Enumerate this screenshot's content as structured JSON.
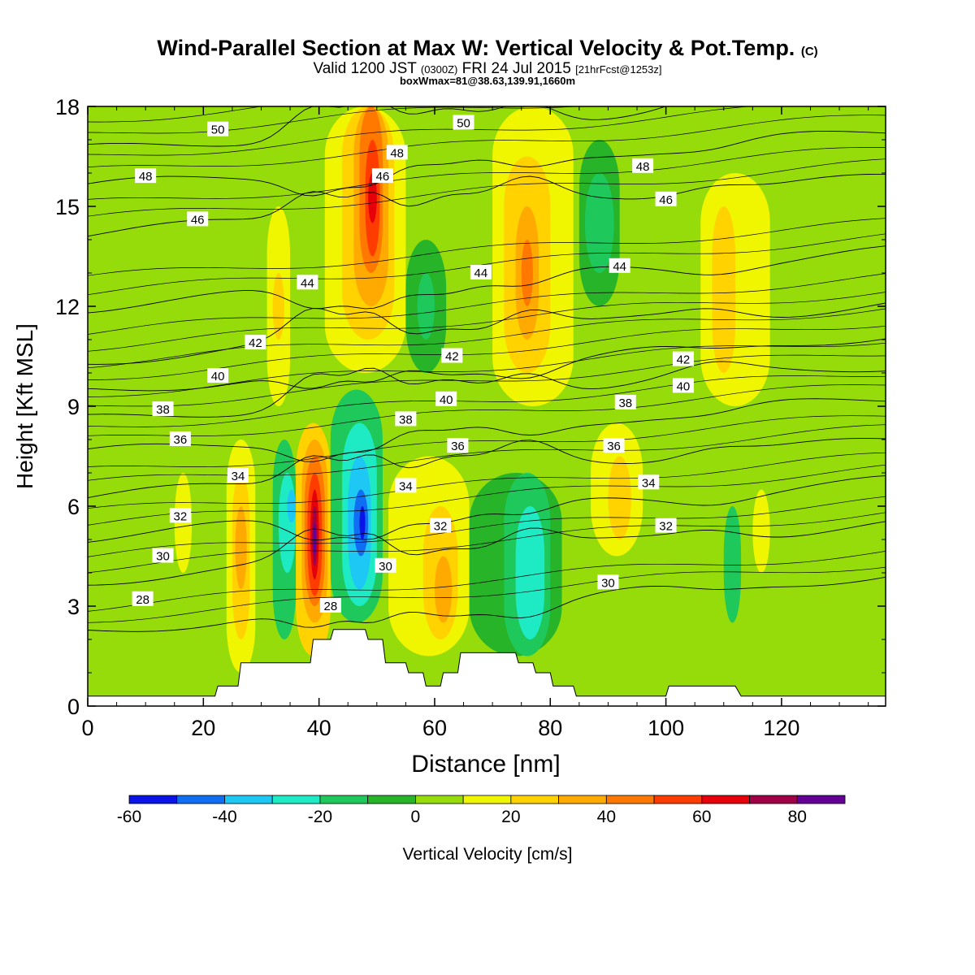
{
  "title": {
    "main": "Wind-Parallel Section at Max W: Vertical Velocity & Pot.Temp.",
    "copyright": "(C)",
    "valid_prefix": "Valid 1200 JST",
    "valid_utc": "(0300Z)",
    "valid_date": "FRI 24 Jul 2015",
    "forecast": "[21hrFcst@1253z]",
    "box_info": "boxWmax=81@38.63,139.91,1660m"
  },
  "chart_data": {
    "type": "heatmap",
    "xlabel": "Distance [nm]",
    "ylabel": "Height [Kft MSL]",
    "xlim": [
      0,
      138
    ],
    "ylim": [
      0,
      18
    ],
    "x_ticks": [
      0,
      20,
      40,
      60,
      80,
      100,
      120
    ],
    "y_ticks": [
      0,
      3,
      6,
      9,
      12,
      15,
      18
    ],
    "colorbar": {
      "label": "Vertical Velocity [cm/s]",
      "min": -60,
      "max": 90,
      "tick_values": [
        -60,
        -40,
        -20,
        0,
        20,
        40,
        60,
        80
      ],
      "colors": [
        "#0a14e6",
        "#0f6ef2",
        "#1ec8f5",
        "#1eebc3",
        "#1ec85a",
        "#28b428",
        "#96dc0a",
        "#f0f500",
        "#ffd200",
        "#ffaa00",
        "#ff7800",
        "#ff3c00",
        "#e6000a",
        "#a00046",
        "#640096"
      ]
    },
    "cells": [
      {
        "x": [
          0,
          138
        ],
        "y": [
          0,
          18
        ],
        "w": 5
      },
      {
        "x": [
          0,
          20
        ],
        "y": [
          7,
          18
        ],
        "w": 5
      },
      {
        "x": [
          0,
          8
        ],
        "y": [
          0,
          4
        ],
        "w": 5
      },
      {
        "x": [
          15,
          20
        ],
        "y": [
          2,
          7
        ],
        "w": 5
      },
      {
        "x": [
          15,
          18
        ],
        "y": [
          4,
          7
        ],
        "w": 15
      },
      {
        "x": [
          22,
          30
        ],
        "y": [
          0.5,
          18
        ],
        "w": 0
      },
      {
        "x": [
          24,
          29
        ],
        "y": [
          1,
          8
        ],
        "w": 15
      },
      {
        "x": [
          25,
          28
        ],
        "y": [
          2,
          7
        ],
        "w": 25
      },
      {
        "x": [
          25.5,
          27.5
        ],
        "y": [
          3.5,
          6
        ],
        "w": 35
      },
      {
        "x": [
          29,
          33
        ],
        "y": [
          0.5,
          17
        ],
        "w": 0
      },
      {
        "x": [
          31,
          35
        ],
        "y": [
          9,
          15
        ],
        "w": 15
      },
      {
        "x": [
          32,
          34
        ],
        "y": [
          11,
          13
        ],
        "w": 25
      },
      {
        "x": [
          32,
          36
        ],
        "y": [
          2,
          8
        ],
        "w": -15
      },
      {
        "x": [
          33,
          36
        ],
        "y": [
          4,
          7
        ],
        "w": -25
      },
      {
        "x": [
          34.5,
          36
        ],
        "y": [
          5.5,
          6.5
        ],
        "w": -35
      },
      {
        "x": [
          36,
          42
        ],
        "y": [
          1.5,
          8.5
        ],
        "w": 25
      },
      {
        "x": [
          37,
          41.5
        ],
        "y": [
          2.5,
          8
        ],
        "w": 35
      },
      {
        "x": [
          37.5,
          41
        ],
        "y": [
          3,
          7.5
        ],
        "w": 45
      },
      {
        "x": [
          38,
          40.5
        ],
        "y": [
          3.3,
          7
        ],
        "w": 55
      },
      {
        "x": [
          38.5,
          40
        ],
        "y": [
          3.8,
          6.5
        ],
        "w": 65
      },
      {
        "x": [
          38.8,
          39.7
        ],
        "y": [
          4.2,
          6
        ],
        "w": 75
      },
      {
        "x": [
          39,
          39.5
        ],
        "y": [
          4.5,
          5.5
        ],
        "w": 85
      },
      {
        "x": [
          42,
          51
        ],
        "y": [
          2.5,
          9.5
        ],
        "w": -15
      },
      {
        "x": [
          44,
          50
        ],
        "y": [
          3,
          8.5
        ],
        "w": -25
      },
      {
        "x": [
          45,
          49
        ],
        "y": [
          3.5,
          7.5
        ],
        "w": -35
      },
      {
        "x": [
          46,
          48.5
        ],
        "y": [
          4.5,
          6.5
        ],
        "w": -45
      },
      {
        "x": [
          47,
          48
        ],
        "y": [
          5,
          6
        ],
        "w": -55
      },
      {
        "x": [
          41,
          55
        ],
        "y": [
          10,
          18
        ],
        "w": 15
      },
      {
        "x": [
          44,
          53
        ],
        "y": [
          11,
          18
        ],
        "w": 25
      },
      {
        "x": [
          46,
          52
        ],
        "y": [
          12,
          18
        ],
        "w": 35
      },
      {
        "x": [
          47,
          51
        ],
        "y": [
          13,
          18
        ],
        "w": 45
      },
      {
        "x": [
          48,
          50.5
        ],
        "y": [
          13.5,
          17
        ],
        "w": 55
      },
      {
        "x": [
          48.5,
          50
        ],
        "y": [
          14.5,
          16
        ],
        "w": 65
      },
      {
        "x": [
          55,
          62
        ],
        "y": [
          10,
          14
        ],
        "w": -5
      },
      {
        "x": [
          57,
          60
        ],
        "y": [
          11,
          13
        ],
        "w": -15
      },
      {
        "x": [
          52,
          66
        ],
        "y": [
          1.5,
          7.5
        ],
        "w": 15
      },
      {
        "x": [
          58,
          64
        ],
        "y": [
          2,
          6
        ],
        "w": 25
      },
      {
        "x": [
          60,
          63
        ],
        "y": [
          2.5,
          4.5
        ],
        "w": 35
      },
      {
        "x": [
          66,
          82
        ],
        "y": [
          1.5,
          7
        ],
        "w": -5
      },
      {
        "x": [
          72,
          80
        ],
        "y": [
          1.5,
          7
        ],
        "w": -15
      },
      {
        "x": [
          74,
          79
        ],
        "y": [
          2,
          6
        ],
        "w": -25
      },
      {
        "x": [
          70,
          84
        ],
        "y": [
          9,
          18
        ],
        "w": 15
      },
      {
        "x": [
          72,
          80
        ],
        "y": [
          10,
          16.5
        ],
        "w": 25
      },
      {
        "x": [
          74,
          78
        ],
        "y": [
          11,
          15
        ],
        "w": 35
      },
      {
        "x": [
          75,
          77
        ],
        "y": [
          12,
          14
        ],
        "w": 45
      },
      {
        "x": [
          85,
          92
        ],
        "y": [
          12,
          17
        ],
        "w": -5
      },
      {
        "x": [
          86,
          91
        ],
        "y": [
          13,
          16
        ],
        "w": -15
      },
      {
        "x": [
          87,
          96
        ],
        "y": [
          4.5,
          8.5
        ],
        "w": 15
      },
      {
        "x": [
          90,
          94
        ],
        "y": [
          5,
          7.5
        ],
        "w": 25
      },
      {
        "x": [
          100,
          108
        ],
        "y": [
          2,
          14
        ],
        "w": 0
      },
      {
        "x": [
          106,
          118
        ],
        "y": [
          9,
          16
        ],
        "w": 15
      },
      {
        "x": [
          108,
          112
        ],
        "y": [
          10,
          15
        ],
        "w": 25
      },
      {
        "x": [
          110,
          113
        ],
        "y": [
          2.5,
          6
        ],
        "w": -15
      },
      {
        "x": [
          115,
          118
        ],
        "y": [
          4,
          6.5
        ],
        "w": 15
      },
      {
        "x": [
          120,
          138
        ],
        "y": [
          0.5,
          18
        ],
        "w": 0
      },
      {
        "x": [
          118,
          127
        ],
        "y": [
          1,
          4
        ],
        "w": 5
      }
    ],
    "terrain": [
      [
        0,
        0.3
      ],
      [
        22,
        0.3
      ],
      [
        22.5,
        0.6
      ],
      [
        26,
        0.6
      ],
      [
        26.5,
        1.3
      ],
      [
        38.5,
        1.3
      ],
      [
        39,
        2
      ],
      [
        42,
        2
      ],
      [
        42.5,
        2.3
      ],
      [
        48,
        2.3
      ],
      [
        48.5,
        2
      ],
      [
        51,
        2
      ],
      [
        51.5,
        1.3
      ],
      [
        55,
        1.3
      ],
      [
        55.5,
        1
      ],
      [
        58,
        1
      ],
      [
        58.5,
        0.6
      ],
      [
        61,
        0.6
      ],
      [
        61.5,
        1
      ],
      [
        64,
        1
      ],
      [
        64.5,
        1.6
      ],
      [
        74,
        1.6
      ],
      [
        74.5,
        1.3
      ],
      [
        77,
        1.3
      ],
      [
        77.5,
        1
      ],
      [
        80,
        1
      ],
      [
        80.5,
        0.6
      ],
      [
        84,
        0.6
      ],
      [
        84.5,
        0.3
      ],
      [
        100,
        0.3
      ],
      [
        100.5,
        0.6
      ],
      [
        112,
        0.6
      ],
      [
        113,
        0.3
      ],
      [
        138,
        0.3
      ]
    ],
    "isentropes": {
      "levels": [
        28,
        30,
        32,
        34,
        36,
        38,
        40,
        42,
        44,
        46,
        48,
        50
      ],
      "heights": [
        3.0,
        4.5,
        5.8,
        7.0,
        8.3,
        9.3,
        10.2,
        11.1,
        12.7,
        14.9,
        16.3,
        17.4
      ]
    },
    "contour_labels": [
      {
        "x": 22.5,
        "y": 17.3,
        "text": "50"
      },
      {
        "x": 65,
        "y": 17.5,
        "text": "50"
      },
      {
        "x": 10,
        "y": 15.9,
        "text": "48"
      },
      {
        "x": 53.5,
        "y": 16.6,
        "text": "48"
      },
      {
        "x": 96,
        "y": 16.2,
        "text": "48"
      },
      {
        "x": 19,
        "y": 14.6,
        "text": "46"
      },
      {
        "x": 51,
        "y": 15.9,
        "text": "46"
      },
      {
        "x": 100,
        "y": 15.2,
        "text": "46"
      },
      {
        "x": 38,
        "y": 12.7,
        "text": "44"
      },
      {
        "x": 68,
        "y": 13,
        "text": "44"
      },
      {
        "x": 92,
        "y": 13.2,
        "text": "44"
      },
      {
        "x": 29,
        "y": 10.9,
        "text": "42"
      },
      {
        "x": 63,
        "y": 10.5,
        "text": "42"
      },
      {
        "x": 103,
        "y": 10.4,
        "text": "42"
      },
      {
        "x": 22.5,
        "y": 9.9,
        "text": "40"
      },
      {
        "x": 62,
        "y": 9.2,
        "text": "40"
      },
      {
        "x": 103,
        "y": 9.6,
        "text": "40"
      },
      {
        "x": 13,
        "y": 8.9,
        "text": "38"
      },
      {
        "x": 55,
        "y": 8.6,
        "text": "38"
      },
      {
        "x": 93,
        "y": 9.1,
        "text": "38"
      },
      {
        "x": 16,
        "y": 8,
        "text": "36"
      },
      {
        "x": 64,
        "y": 7.8,
        "text": "36"
      },
      {
        "x": 91,
        "y": 7.8,
        "text": "36"
      },
      {
        "x": 26,
        "y": 6.9,
        "text": "34"
      },
      {
        "x": 55,
        "y": 6.6,
        "text": "34"
      },
      {
        "x": 97,
        "y": 6.7,
        "text": "34"
      },
      {
        "x": 16,
        "y": 5.7,
        "text": "32"
      },
      {
        "x": 61,
        "y": 5.4,
        "text": "32"
      },
      {
        "x": 100,
        "y": 5.4,
        "text": "32"
      },
      {
        "x": 13,
        "y": 4.5,
        "text": "30"
      },
      {
        "x": 51.5,
        "y": 4.2,
        "text": "30"
      },
      {
        "x": 90,
        "y": 3.7,
        "text": "30"
      },
      {
        "x": 9.5,
        "y": 3.2,
        "text": "28"
      },
      {
        "x": 42,
        "y": 3,
        "text": "28"
      }
    ]
  }
}
